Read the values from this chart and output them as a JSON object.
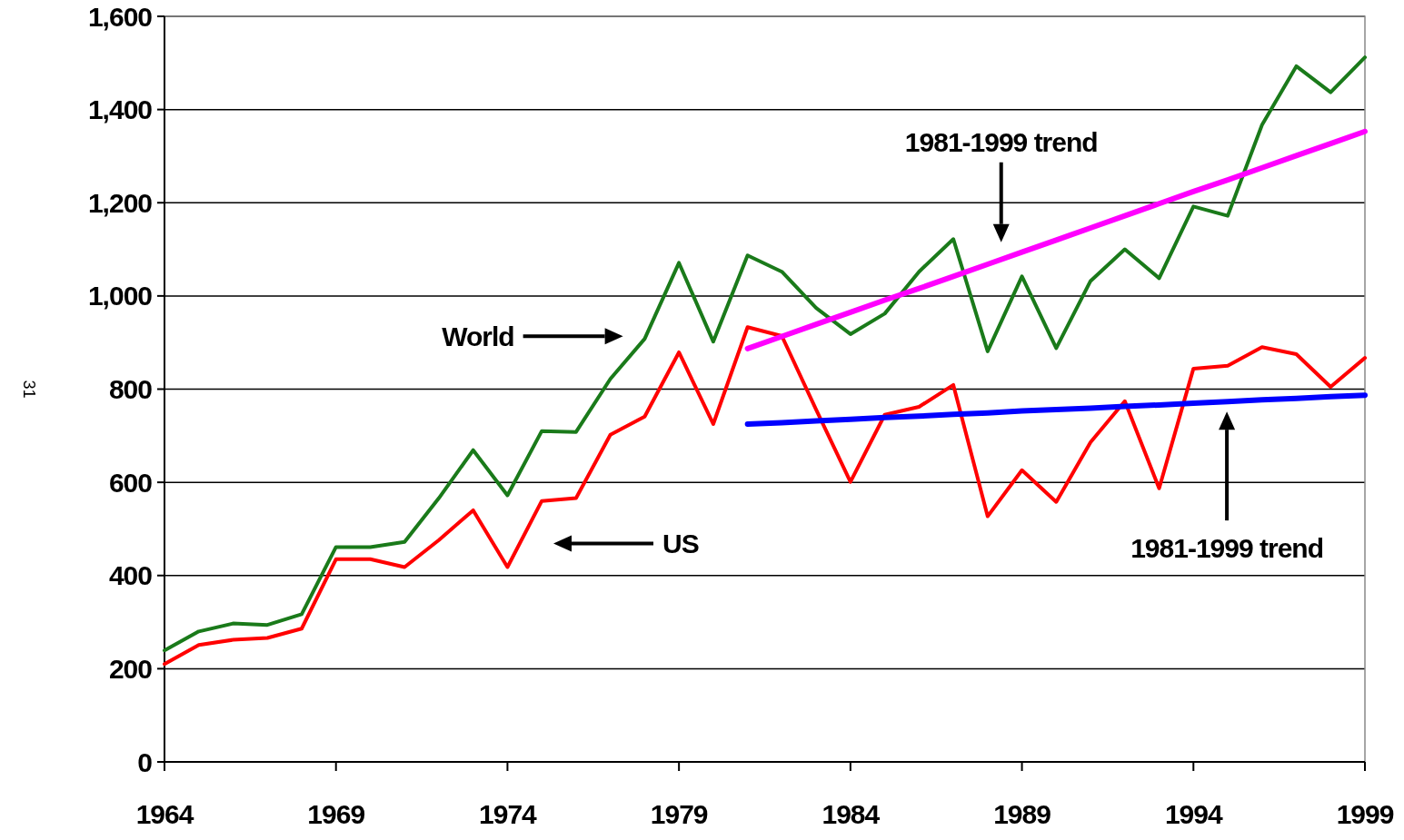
{
  "chart_data": {
    "type": "line",
    "x": [
      1964,
      1965,
      1966,
      1967,
      1968,
      1969,
      1970,
      1971,
      1972,
      1973,
      1974,
      1975,
      1976,
      1977,
      1978,
      1979,
      1980,
      1981,
      1982,
      1983,
      1984,
      1985,
      1986,
      1987,
      1988,
      1989,
      1990,
      1991,
      1992,
      1993,
      1994,
      1995,
      1996,
      1997,
      1998,
      1999
    ],
    "series": [
      {
        "color": "#1a7a1a",
        "values": [
          239,
          280,
          297,
          294,
          317,
          461,
          461,
          472,
          566,
          669,
          572,
          710,
          708,
          822,
          908,
          1071,
          902,
          1087,
          1052,
          974,
          918,
          962,
          1052,
          1122,
          881,
          1042,
          888,
          1032,
          1100,
          1038,
          1192,
          1172,
          1367,
          1493,
          1437,
          1512
        ]
      },
      {
        "color": "#ff0000",
        "values": [
          210,
          251,
          262,
          266,
          286,
          435,
          435,
          418,
          476,
          540,
          418,
          560,
          566,
          702,
          741,
          879,
          725,
          933,
          914,
          756,
          601,
          745,
          762,
          809,
          527,
          626,
          558,
          686,
          774,
          587,
          844,
          850,
          890,
          875,
          805,
          867
        ]
      },
      {
        "color": "#ff00ff",
        "values": [
          null,
          null,
          null,
          null,
          null,
          null,
          null,
          null,
          null,
          null,
          null,
          null,
          null,
          null,
          null,
          null,
          null,
          887,
          913,
          939,
          965,
          991,
          1016,
          1042,
          1068,
          1094,
          1120,
          1146,
          1172,
          1198,
          1224,
          1249,
          1275,
          1301,
          1327,
          1353
        ]
      },
      {
        "color": "#0000ff",
        "values": [
          null,
          null,
          null,
          null,
          null,
          null,
          null,
          null,
          null,
          null,
          null,
          null,
          null,
          null,
          null,
          null,
          null,
          725,
          728,
          732,
          735,
          739,
          742,
          746,
          749,
          753,
          756,
          759,
          763,
          766,
          770,
          773,
          777,
          780,
          784,
          787
        ]
      }
    ],
    "xlim": [
      1964,
      1999
    ],
    "xticks": [
      1964,
      1969,
      1974,
      1979,
      1984,
      1989,
      1994,
      1999
    ],
    "ylim": [
      0,
      1600
    ],
    "yticks": [
      0,
      {
        "value": 200,
        "label": "200"
      },
      {
        "value": 400,
        "label": "400"
      },
      {
        "value": 600,
        "label": "600"
      },
      {
        "value": 800,
        "label": "800"
      },
      {
        "value": 1000,
        "label": "1,000"
      },
      {
        "value": 1200,
        "label": "1,200"
      },
      {
        "value": 1400,
        "label": "1,400"
      },
      {
        "value": 1600,
        "label": "1,600"
      }
    ],
    "grid": "y",
    "line_style": "solid",
    "marker": "none",
    "annotations": [
      "World",
      "US",
      "1981-1999 trend",
      "1981-1999 trend",
      "31"
    ]
  }
}
